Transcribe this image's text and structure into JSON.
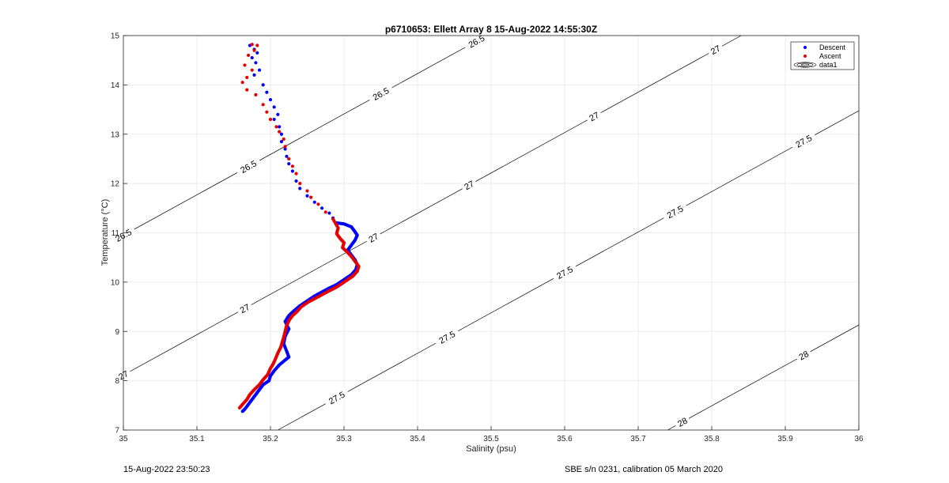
{
  "chart_data": {
    "type": "scatter",
    "title": "p6710653: Ellett Array 8 15-Aug-2022 14:55:30Z",
    "xlabel": "Salinity (psu)",
    "ylabel": "Temperature (°C)",
    "xlim": [
      35,
      36
    ],
    "ylim": [
      7,
      15
    ],
    "xticks": [
      "35",
      "35.1",
      "35.2",
      "35.3",
      "35.4",
      "35.5",
      "35.6",
      "35.7",
      "35.8",
      "35.9",
      "36"
    ],
    "yticks": [
      "7",
      "8",
      "9",
      "10",
      "11",
      "12",
      "13",
      "14",
      "15"
    ],
    "grid": true,
    "legend_position": "top-right",
    "legend": [
      "Descent",
      "Ascent",
      "data1"
    ],
    "series": [
      {
        "name": "Descent",
        "color": "#0000ff",
        "points": [
          [
            35.172,
            14.8
          ],
          [
            35.178,
            14.72
          ],
          [
            35.182,
            14.65
          ],
          [
            35.175,
            14.55
          ],
          [
            35.18,
            14.45
          ],
          [
            35.185,
            14.3
          ],
          [
            35.178,
            14.2
          ],
          [
            35.19,
            14.0
          ],
          [
            35.195,
            13.85
          ],
          [
            35.2,
            13.7
          ],
          [
            35.205,
            13.55
          ],
          [
            35.21,
            13.4
          ],
          [
            35.205,
            13.3
          ],
          [
            35.212,
            13.15
          ],
          [
            35.215,
            13.0
          ],
          [
            35.215,
            12.85
          ],
          [
            35.22,
            12.7
          ],
          [
            35.222,
            12.55
          ],
          [
            35.225,
            12.4
          ],
          [
            35.23,
            12.25
          ],
          [
            35.235,
            12.05
          ],
          [
            35.24,
            11.9
          ],
          [
            35.25,
            11.75
          ],
          [
            35.26,
            11.62
          ],
          [
            35.27,
            11.5
          ],
          [
            35.28,
            11.4
          ],
          [
            35.285,
            11.3
          ],
          [
            35.29,
            11.2
          ],
          [
            35.3,
            11.18
          ],
          [
            35.31,
            11.12
          ],
          [
            35.315,
            11.02
          ],
          [
            35.318,
            10.95
          ],
          [
            35.315,
            10.85
          ],
          [
            35.31,
            10.75
          ],
          [
            35.305,
            10.65
          ],
          [
            35.31,
            10.55
          ],
          [
            35.315,
            10.45
          ],
          [
            35.318,
            10.35
          ],
          [
            35.316,
            10.25
          ],
          [
            35.31,
            10.15
          ],
          [
            35.3,
            10.05
          ],
          [
            35.29,
            9.95
          ],
          [
            35.28,
            9.88
          ],
          [
            35.27,
            9.8
          ],
          [
            35.26,
            9.72
          ],
          [
            35.25,
            9.62
          ],
          [
            35.24,
            9.52
          ],
          [
            35.232,
            9.42
          ],
          [
            35.225,
            9.32
          ],
          [
            35.22,
            9.2
          ],
          [
            35.225,
            9.05
          ],
          [
            35.22,
            8.9
          ],
          [
            35.218,
            8.75
          ],
          [
            35.222,
            8.6
          ],
          [
            35.225,
            8.48
          ],
          [
            35.22,
            8.42
          ],
          [
            35.212,
            8.32
          ],
          [
            35.205,
            8.2
          ],
          [
            35.2,
            8.1
          ],
          [
            35.198,
            8.0
          ],
          [
            35.19,
            7.92
          ],
          [
            35.185,
            7.82
          ],
          [
            35.18,
            7.72
          ],
          [
            35.175,
            7.62
          ],
          [
            35.17,
            7.52
          ],
          [
            35.165,
            7.42
          ],
          [
            35.162,
            7.38
          ]
        ]
      },
      {
        "name": "Ascent",
        "color": "#e60000",
        "points": [
          [
            35.175,
            14.82
          ],
          [
            35.182,
            14.8
          ],
          [
            35.178,
            14.7
          ],
          [
            35.17,
            14.6
          ],
          [
            35.165,
            14.4
          ],
          [
            35.175,
            14.3
          ],
          [
            35.168,
            14.15
          ],
          [
            35.162,
            14.05
          ],
          [
            35.168,
            13.9
          ],
          [
            35.18,
            13.8
          ],
          [
            35.19,
            13.6
          ],
          [
            35.195,
            13.45
          ],
          [
            35.2,
            13.3
          ],
          [
            35.208,
            13.15
          ],
          [
            35.212,
            13.05
          ],
          [
            35.218,
            12.9
          ],
          [
            35.22,
            12.75
          ],
          [
            35.225,
            12.5
          ],
          [
            35.23,
            12.35
          ],
          [
            35.235,
            12.2
          ],
          [
            35.24,
            12.0
          ],
          [
            35.25,
            11.85
          ],
          [
            35.255,
            11.72
          ],
          [
            35.265,
            11.58
          ],
          [
            35.275,
            11.42
          ],
          [
            35.285,
            11.28
          ],
          [
            35.292,
            11.1
          ],
          [
            35.29,
            10.98
          ],
          [
            35.295,
            10.88
          ],
          [
            35.3,
            10.8
          ],
          [
            35.298,
            10.7
          ],
          [
            35.305,
            10.6
          ],
          [
            35.31,
            10.52
          ],
          [
            35.315,
            10.42
          ],
          [
            35.32,
            10.32
          ],
          [
            35.318,
            10.22
          ],
          [
            35.312,
            10.12
          ],
          [
            35.305,
            10.05
          ],
          [
            35.298,
            9.98
          ],
          [
            35.29,
            9.9
          ],
          [
            35.282,
            9.84
          ],
          [
            35.272,
            9.76
          ],
          [
            35.262,
            9.68
          ],
          [
            35.252,
            9.6
          ],
          [
            35.242,
            9.5
          ],
          [
            35.236,
            9.4
          ],
          [
            35.23,
            9.32
          ],
          [
            35.226,
            9.24
          ],
          [
            35.222,
            9.12
          ],
          [
            35.22,
            9.0
          ],
          [
            35.218,
            8.88
          ],
          [
            35.216,
            8.78
          ],
          [
            35.214,
            8.68
          ],
          [
            35.21,
            8.56
          ],
          [
            35.207,
            8.45
          ],
          [
            35.204,
            8.35
          ],
          [
            35.2,
            8.25
          ],
          [
            35.196,
            8.12
          ],
          [
            35.19,
            8.02
          ],
          [
            35.185,
            7.92
          ],
          [
            35.178,
            7.82
          ],
          [
            35.172,
            7.72
          ],
          [
            35.168,
            7.62
          ],
          [
            35.162,
            7.52
          ],
          [
            35.158,
            7.45
          ]
        ]
      }
    ],
    "contours": [
      {
        "level": "26.5",
        "s_at_t7": 34.518,
        "labels_at": [
          35.0,
          35.17,
          35.35,
          35.48,
          35.62
        ]
      },
      {
        "level": "27",
        "s_at_t7": 34.864,
        "labels_at": [
          35.0,
          35.165,
          35.34,
          35.47,
          35.64,
          35.805,
          35.985
        ]
      },
      {
        "level": "27.5",
        "s_at_t7": 35.21,
        "labels_at": [
          35.14,
          35.29,
          35.44,
          35.6,
          35.75,
          35.925
        ]
      },
      {
        "level": "28",
        "s_at_t7": 35.74,
        "labels_at": [
          35.76,
          35.925
        ]
      }
    ],
    "contour_slope": 0.122
  },
  "footer": {
    "left": "15-Aug-2022 23:50:23",
    "right": "SBE s/n 0231, calibration 05 March 2020"
  }
}
